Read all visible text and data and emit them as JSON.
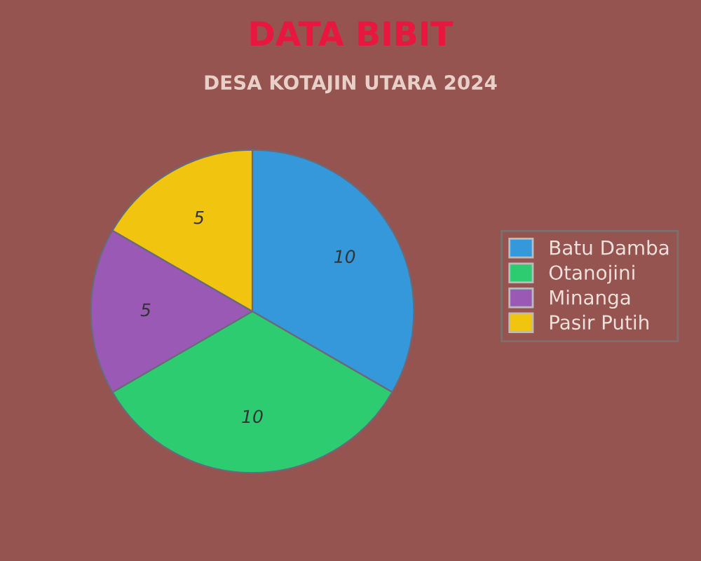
{
  "chart_data": {
    "type": "pie",
    "title": "DATA BIBIT",
    "subtitle": "DESA KOTAJIN UTARA 2024",
    "categories": [
      "Batu Damba",
      "Otanojini",
      "Minanga",
      "Pasir Putih"
    ],
    "values": [
      10,
      10,
      5,
      5
    ],
    "colors": [
      "#3498db",
      "#2ecc71",
      "#9b59b6",
      "#f1c40f"
    ],
    "data_labels": true,
    "legend": "right"
  }
}
